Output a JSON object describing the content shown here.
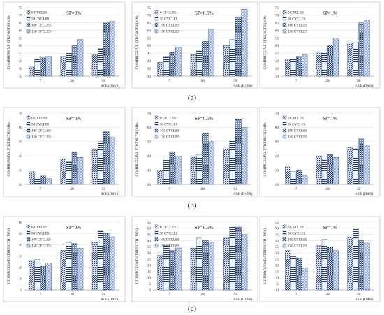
{
  "figure": {
    "row_labels": [
      "(a)",
      "(b)",
      "(c)"
    ]
  },
  "chart_data": [
    {
      "type": "bar",
      "title": "SP=0%",
      "categories": [
        "7",
        "28",
        "56"
      ],
      "xlabel": "AGE (DAYS)",
      "ylabel": "COMPRESSIVE STRENGTH (MPa)",
      "ylim": [
        30,
        75
      ],
      "yticks": [
        30,
        35,
        40,
        45,
        50,
        55,
        60,
        65,
        70,
        75
      ],
      "legend": "top-left",
      "series": [
        {
          "name": "0 CYCLES",
          "values": [
            36,
            43,
            44
          ]
        },
        {
          "name": "50 CYCLES",
          "values": [
            41,
            45,
            48
          ]
        },
        {
          "name": "100 CYCLES",
          "values": [
            42,
            50,
            65
          ]
        },
        {
          "name": "150 CYCLES",
          "values": [
            43,
            54,
            66
          ]
        }
      ]
    },
    {
      "type": "bar",
      "title": "SP=0.5%",
      "categories": [
        "7",
        "28",
        "56"
      ],
      "xlabel": "AGE (DAYS)",
      "ylabel": "COMPRESSIVE STRENGTH (MPa)",
      "ylim": [
        30,
        75
      ],
      "yticks": [
        30,
        35,
        40,
        45,
        50,
        55,
        60,
        65,
        70,
        75
      ],
      "legend": "top-left",
      "series": [
        {
          "name": "0 CYCLES",
          "values": [
            39,
            44,
            50
          ]
        },
        {
          "name": "50 CYCLES",
          "values": [
            43,
            47,
            54
          ]
        },
        {
          "name": "100 CYCLES",
          "values": [
            46,
            53,
            69
          ]
        },
        {
          "name": "150 CYCLES",
          "values": [
            49,
            61,
            74
          ]
        }
      ]
    },
    {
      "type": "bar",
      "title": "SP=1%",
      "categories": [
        "7",
        "28",
        "56"
      ],
      "xlabel": "AGE (DAYS)",
      "ylabel": "COMPRESSIVE STRENGTH (MPa)",
      "ylim": [
        30,
        75
      ],
      "yticks": [
        30,
        35,
        40,
        45,
        50,
        55,
        60,
        65,
        70,
        75
      ],
      "legend": "top-left",
      "series": [
        {
          "name": "0 CYCLES",
          "values": [
            41,
            46,
            52
          ]
        },
        {
          "name": "50 CYCLES",
          "values": [
            41,
            46,
            52
          ]
        },
        {
          "name": "100 CYCLES",
          "values": [
            43,
            50,
            65
          ]
        },
        {
          "name": "150 CYCLES",
          "values": [
            44,
            55,
            67
          ]
        }
      ]
    },
    {
      "type": "bar",
      "title": "SP=0%",
      "categories": [
        "7",
        "28",
        "56"
      ],
      "xlabel": "AGE (DAYS)",
      "ylabel": "COMPRESSIVE STRENGTH (MPa)",
      "ylim": [
        20,
        70
      ],
      "yticks": [
        20,
        30,
        40,
        50,
        60,
        70
      ],
      "legend": "top-left",
      "series": [
        {
          "name": "0 CYCLES",
          "values": [
            29,
            38,
            45
          ]
        },
        {
          "name": "50 CYCLES",
          "values": [
            25,
            36,
            50
          ]
        },
        {
          "name": "100 CYCLES",
          "values": [
            26,
            43,
            57
          ]
        },
        {
          "name": "150 CYCLES",
          "values": [
            24,
            39,
            53
          ]
        }
      ]
    },
    {
      "type": "bar",
      "title": "SP=0.5%",
      "categories": [
        "7",
        "28",
        "56"
      ],
      "xlabel": "AGE (DAYS)",
      "ylabel": "COMPRESSIVE STRENGTH (MPa)",
      "ylim": [
        20,
        70
      ],
      "yticks": [
        20,
        30,
        40,
        50,
        60,
        70
      ],
      "legend": "top-left",
      "series": [
        {
          "name": "0 CYCLES",
          "values": [
            30,
            40,
            45
          ]
        },
        {
          "name": "50 CYCLES",
          "values": [
            37,
            41,
            51
          ]
        },
        {
          "name": "100 CYCLES",
          "values": [
            43,
            56,
            66
          ]
        },
        {
          "name": "150 CYCLES",
          "values": [
            40,
            50,
            60
          ]
        }
      ]
    },
    {
      "type": "bar",
      "title": "SP=1%",
      "categories": [
        "7",
        "28",
        "56"
      ],
      "xlabel": "AGE (DAYS)",
      "ylabel": "COMPRESSIVE STRENGTH (MPa)",
      "ylim": [
        20,
        70
      ],
      "yticks": [
        20,
        30,
        40,
        50,
        60,
        70
      ],
      "legend": "top-left",
      "series": [
        {
          "name": "0 CYCLES",
          "values": [
            33,
            40,
            46
          ]
        },
        {
          "name": "50 CYCLES",
          "values": [
            29,
            38,
            45
          ]
        },
        {
          "name": "100 CYCLES",
          "values": [
            30,
            41,
            52
          ]
        },
        {
          "name": "150 CYCLES",
          "values": [
            26,
            39,
            47
          ]
        }
      ]
    },
    {
      "type": "bar",
      "title": "SP=0%",
      "categories": [
        "7",
        "28",
        "56"
      ],
      "xlabel": "AGE (DAYS)",
      "ylabel": "COMPRESSIVE STRENGTH (MPa)",
      "ylim": [
        0,
        60
      ],
      "yticks": [
        0,
        10,
        20,
        30,
        40,
        50,
        60
      ],
      "legend": "top-left",
      "series": [
        {
          "name": "0 CYCLES",
          "values": [
            26,
            35,
            42
          ]
        },
        {
          "name": "50 CYCLES",
          "values": [
            27,
            42,
            52
          ]
        },
        {
          "name": "100 CYCLES",
          "values": [
            21,
            41,
            50
          ]
        },
        {
          "name": "150 CYCLES",
          "values": [
            24,
            37,
            47
          ]
        }
      ]
    },
    {
      "type": "bar",
      "title": "SP=0.5%",
      "categories": [
        "7",
        "28",
        "56"
      ],
      "xlabel": "AGE (DAYS)",
      "ylabel": "COMPRESSIVE STRENGTH (MPa)",
      "ylim": [
        0,
        55
      ],
      "yticks": [
        0,
        5,
        10,
        15,
        20,
        25,
        30,
        35,
        40,
        45,
        50,
        55
      ],
      "legend": "top-left",
      "series": [
        {
          "name": "0 CYCLES",
          "values": [
            28,
            34,
            42
          ]
        },
        {
          "name": "50 CYCLES",
          "values": [
            36,
            42,
            52
          ]
        },
        {
          "name": "100 CYCLES",
          "values": [
            32,
            40,
            51
          ]
        },
        {
          "name": "150 CYCLES",
          "values": [
            34,
            39,
            45
          ]
        }
      ]
    },
    {
      "type": "bar",
      "title": "SP=1%",
      "categories": [
        "7",
        "28",
        "56"
      ],
      "xlabel": "AGE (DAYS)",
      "ylabel": "COMPRESSIVE STRENGTH (MPa)",
      "ylim": [
        0,
        55
      ],
      "yticks": [
        0,
        5,
        10,
        15,
        20,
        25,
        30,
        35,
        40,
        45,
        50,
        55
      ],
      "legend": "top-left",
      "series": [
        {
          "name": "0 CYCLES",
          "values": [
            32,
            36,
            43
          ]
        },
        {
          "name": "50 CYCLES",
          "values": [
            27,
            41,
            50
          ]
        },
        {
          "name": "100 CYCLES",
          "values": [
            26,
            35,
            40
          ]
        },
        {
          "name": "150 CYCLES",
          "values": [
            18,
            32,
            38
          ]
        }
      ]
    }
  ]
}
